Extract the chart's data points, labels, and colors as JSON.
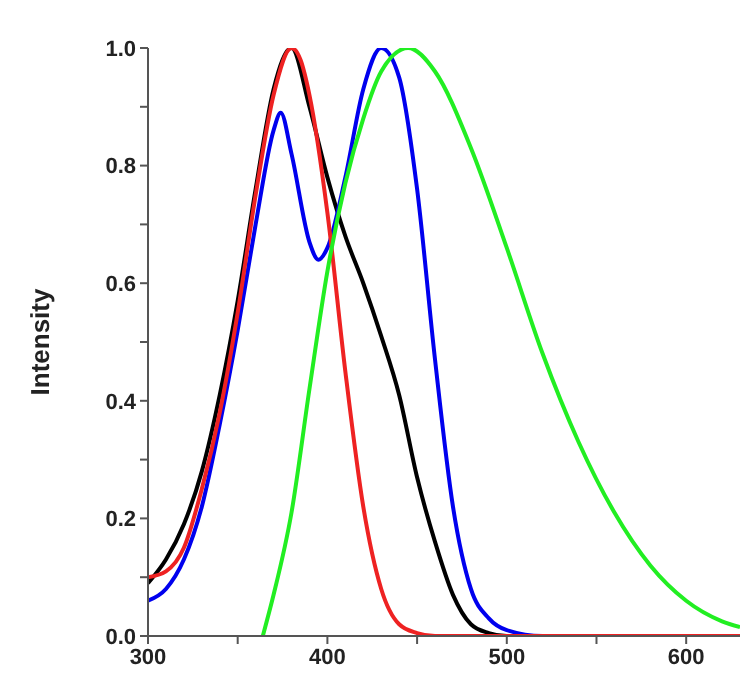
{
  "chart_data": {
    "type": "line",
    "ylabel": "Intensity",
    "xlim": [
      300,
      630
    ],
    "ylim": [
      0,
      1.0
    ],
    "xticks": [
      300,
      {
        "value": 350,
        "label": null
      },
      400,
      {
        "value": 450,
        "label": null
      },
      500,
      {
        "value": 550,
        "label": null
      },
      600
    ],
    "yticks": [
      {
        "value": 0,
        "label": "0.0"
      },
      {
        "value": 0.1,
        "label": null
      },
      0.2,
      {
        "value": 0.3,
        "label": null
      },
      0.4,
      {
        "value": 0.5,
        "label": null
      },
      0.6,
      {
        "value": 0.7,
        "label": null
      },
      0.8,
      {
        "value": 0.9,
        "label": null
      },
      {
        "value": 1.0,
        "label": "1.0"
      }
    ],
    "grid": false,
    "legend": false,
    "marker": "none",
    "line_style": "solid",
    "series": [
      {
        "color": "#000000",
        "x": [
          300,
          310,
          320,
          330,
          340,
          350,
          360,
          370,
          380,
          390,
          400,
          410,
          420,
          430,
          440,
          450,
          460,
          470,
          480,
          490,
          500,
          520,
          630
        ],
        "values": [
          0.09,
          0.13,
          0.19,
          0.28,
          0.41,
          0.57,
          0.76,
          0.93,
          1.0,
          0.9,
          0.78,
          0.68,
          0.6,
          0.51,
          0.41,
          0.27,
          0.16,
          0.07,
          0.02,
          0.005,
          0,
          0,
          0
        ]
      },
      {
        "color": "#0000ee",
        "x": [
          300,
          310,
          320,
          330,
          340,
          350,
          360,
          370,
          374,
          380,
          390,
          395,
          400,
          410,
          420,
          430,
          440,
          450,
          460,
          470,
          480,
          490,
          500,
          520,
          630
        ],
        "values": [
          0.06,
          0.08,
          0.13,
          0.22,
          0.36,
          0.52,
          0.7,
          0.86,
          0.89,
          0.82,
          0.67,
          0.64,
          0.66,
          0.78,
          0.93,
          1.0,
          0.95,
          0.76,
          0.47,
          0.22,
          0.08,
          0.03,
          0.01,
          0,
          0
        ]
      },
      {
        "color": "#ee2222",
        "x": [
          300,
          310,
          320,
          330,
          340,
          350,
          360,
          370,
          380,
          385,
          390,
          400,
          410,
          420,
          430,
          440,
          450,
          460,
          630
        ],
        "values": [
          0.1,
          0.11,
          0.15,
          0.25,
          0.38,
          0.55,
          0.75,
          0.92,
          1.0,
          0.98,
          0.92,
          0.72,
          0.45,
          0.22,
          0.08,
          0.02,
          0.005,
          0,
          0
        ]
      },
      {
        "color": "#22ee22",
        "x": [
          364,
          370,
          380,
          390,
          400,
          410,
          420,
          430,
          445,
          460,
          480,
          500,
          520,
          540,
          560,
          580,
          600,
          620,
          630
        ],
        "values": [
          0,
          0.07,
          0.21,
          0.42,
          0.62,
          0.77,
          0.88,
          0.96,
          1.0,
          0.96,
          0.83,
          0.66,
          0.48,
          0.33,
          0.21,
          0.12,
          0.06,
          0.025,
          0.015
        ]
      }
    ]
  }
}
